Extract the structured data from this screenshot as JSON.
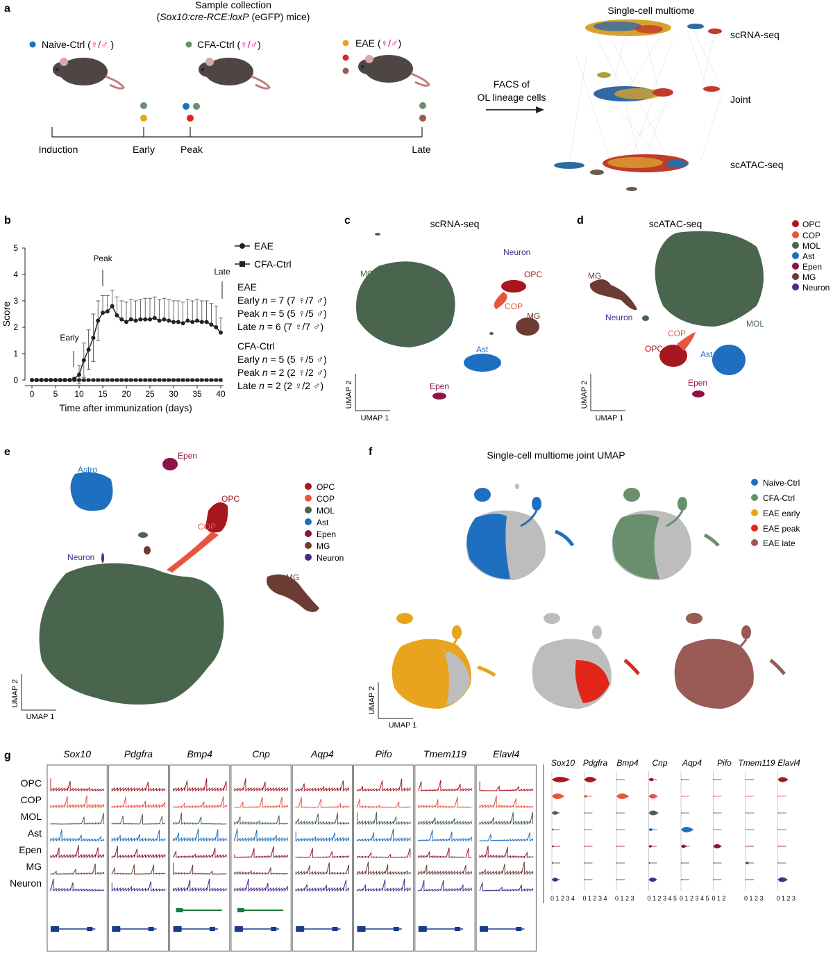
{
  "colors": {
    "opc": "#a8161f",
    "cop": "#e8553e",
    "mol": "#4a654d",
    "ast": "#1f6fc0",
    "epen": "#8c1346",
    "mg": "#6b3b34",
    "neuron": "#4b2a88",
    "naive": "#1f6fc0",
    "cfa": "#6a8f6e",
    "early": "#e8a41c",
    "peak": "#e1251b",
    "late": "#9a5a55",
    "grey": "#bdbdbd"
  },
  "panel_a": {
    "letter": "a",
    "title_line1": "Sample collection",
    "title_line2_italic": "Sox10:cre-RCE:loxP",
    "title_line2_rest": " (eGFP) mice)",
    "title_line2_open": "(",
    "groups": [
      {
        "label": "Naive-Ctrl (",
        "sex": "♀/♂",
        "close": " )",
        "color": "naive"
      },
      {
        "label": "CFA-Ctrl (",
        "sex": "♀/♂",
        "close": ")",
        "color": "cfa"
      },
      {
        "label": "EAE (",
        "sex": "♀/♂",
        "close": ")",
        "color": "early"
      }
    ],
    "timeline": [
      "Induction",
      "Early",
      "Peak",
      "Late"
    ],
    "facs_line1": "FACS of",
    "facs_line2": "OL lineage cells",
    "multiome_title": "Single-cell multiome",
    "layers": [
      "scRNA-seq",
      "Joint",
      "scATAC-seq"
    ]
  },
  "panel_b": {
    "letter": "b",
    "ylabel": "Score",
    "xlabel": "Time after immunization (days)",
    "annotations": [
      "Early",
      "Peak",
      "Late"
    ],
    "legend": [
      "EAE",
      "CFA-Ctrl"
    ],
    "eae_title": "EAE",
    "eae_rows": [
      {
        "stage": "Early",
        "n": "n",
        "rest": " = 7 (7 ♀/7 ♂)"
      },
      {
        "stage": "Peak",
        "n": "n",
        "rest": " = 5 (5 ♀/5 ♂)"
      },
      {
        "stage": "Late",
        "n": "n",
        "rest": " = 6 (7 ♀/7 ♂)"
      }
    ],
    "cfa_title": "CFA-Ctrl",
    "cfa_rows": [
      {
        "stage": "Early",
        "n": "n",
        "rest": " = 5 (5 ♀/5 ♂)"
      },
      {
        "stage": "Peak",
        "n": "n",
        "rest": " = 2 (2 ♀/2 ♂)"
      },
      {
        "stage": "Late",
        "n": "n",
        "rest": " = 2 (2 ♀/2 ♂)"
      }
    ]
  },
  "chart_data": {
    "type": "line",
    "xlabel": "Time after immunization (days)",
    "ylabel": "Score",
    "xlim": [
      0,
      40
    ],
    "ylim": [
      0,
      5
    ],
    "xticks": [
      0,
      5,
      10,
      15,
      20,
      25,
      30,
      35,
      40
    ],
    "yticks": [
      0,
      1,
      2,
      3,
      4,
      5
    ],
    "series": [
      {
        "name": "EAE",
        "x": [
          0,
          1,
          2,
          3,
          4,
          5,
          6,
          7,
          8,
          9,
          10,
          11,
          12,
          13,
          14,
          15,
          16,
          17,
          18,
          19,
          20,
          21,
          22,
          23,
          24,
          25,
          26,
          27,
          28,
          29,
          30,
          31,
          32,
          33,
          34,
          35,
          36,
          37,
          38,
          39,
          40
        ],
        "y": [
          0,
          0,
          0,
          0,
          0,
          0,
          0,
          0,
          0,
          0.05,
          0.2,
          0.75,
          1.15,
          1.6,
          2.25,
          2.55,
          2.6,
          2.8,
          2.45,
          2.3,
          2.2,
          2.3,
          2.25,
          2.3,
          2.3,
          2.3,
          2.35,
          2.25,
          2.3,
          2.25,
          2.2,
          2.2,
          2.15,
          2.25,
          2.2,
          2.25,
          2.2,
          2.2,
          2.1,
          2.0,
          1.8
        ],
        "err": [
          0,
          0,
          0,
          0,
          0,
          0,
          0,
          0,
          0,
          0.05,
          0.35,
          0.65,
          0.75,
          0.9,
          0.75,
          0.65,
          0.6,
          0.6,
          0.7,
          0.7,
          0.75,
          0.75,
          0.75,
          0.75,
          0.8,
          0.8,
          0.8,
          0.8,
          0.8,
          0.8,
          0.8,
          0.8,
          0.8,
          0.8,
          0.8,
          0.8,
          0.8,
          0.8,
          0.8,
          0.8,
          0.55
        ]
      },
      {
        "name": "CFA-Ctrl",
        "x": [
          0,
          1,
          2,
          3,
          4,
          5,
          6,
          7,
          8,
          9,
          10,
          11,
          12,
          13,
          14,
          15,
          16,
          17,
          18,
          19,
          20,
          21,
          22,
          23,
          24,
          25,
          26,
          27,
          28,
          29,
          30,
          31,
          32,
          33,
          34,
          35,
          36,
          37,
          38,
          39,
          40
        ],
        "y": [
          0,
          0,
          0,
          0,
          0,
          0,
          0,
          0,
          0,
          0,
          0,
          0,
          0,
          0,
          0,
          0,
          0,
          0,
          0,
          0,
          0,
          0,
          0,
          0,
          0,
          0,
          0,
          0,
          0,
          0,
          0,
          0,
          0,
          0,
          0,
          0,
          0,
          0,
          0,
          0,
          0
        ]
      }
    ]
  },
  "panel_c": {
    "letter": "c",
    "title": "scRNA-seq",
    "labels": [
      "MOL",
      "Neuron",
      "OPC",
      "COP",
      "MG",
      "Ast",
      "Epen"
    ],
    "umap1": "UMAP 1",
    "umap2": "UMAP 2"
  },
  "panel_d": {
    "letter": "d",
    "title": "scATAC-seq",
    "labels": [
      "MG",
      "Neuron",
      "MOL",
      "COP",
      "OPC",
      "Ast",
      "Epen"
    ],
    "umap1": "UMAP 1",
    "umap2": "UMAP 2"
  },
  "celltype_legend": [
    {
      "label": "OPC",
      "color": "opc"
    },
    {
      "label": "COP",
      "color": "cop"
    },
    {
      "label": "MOL",
      "color": "mol"
    },
    {
      "label": "Ast",
      "color": "ast"
    },
    {
      "label": "Epen",
      "color": "epen"
    },
    {
      "label": "MG",
      "color": "mg"
    },
    {
      "label": "Neuron",
      "color": "neuron"
    }
  ],
  "panel_e": {
    "letter": "e",
    "labels": [
      "Astro",
      "Epen",
      "OPC",
      "COP",
      "Neuron",
      "MOL",
      "MG"
    ],
    "umap1": "UMAP 1",
    "umap2": "UMAP 2"
  },
  "panel_f": {
    "letter": "f",
    "title": "Single-cell multiome joint UMAP",
    "legend": [
      {
        "label": "Naive-Ctrl",
        "color": "naive"
      },
      {
        "label": "CFA-Ctrl",
        "color": "cfa"
      },
      {
        "label": "EAE early",
        "color": "early"
      },
      {
        "label": "EAE peak",
        "color": "peak"
      },
      {
        "label": "EAE late",
        "color": "late"
      }
    ],
    "umap1": "UMAP 1",
    "umap2": "UMAP 2"
  },
  "panel_g": {
    "letter": "g",
    "genes": [
      "Sox10",
      "Pdgfra",
      "Bmp4",
      "Cnp",
      "Aqp4",
      "Pifo",
      "Tmem119",
      "Elavl4"
    ],
    "rows": [
      "OPC",
      "COP",
      "MOL",
      "Ast",
      "Epen",
      "MG",
      "Neuron"
    ],
    "violin_genes": [
      "Sox10",
      "Pdgfra",
      "Bmp4",
      "Cnp",
      "Aqp4",
      "Pifo",
      "Tmem119",
      "Elavl4"
    ],
    "violin_ticks": [
      "0 1 2 3 4",
      "0 1 2 3 4",
      "0 1 2 3",
      "0 1 2 3 4 5",
      "0 1 2 3 4 5",
      "0  1  2",
      "0 1 2 3",
      "0 1 2 3"
    ]
  }
}
